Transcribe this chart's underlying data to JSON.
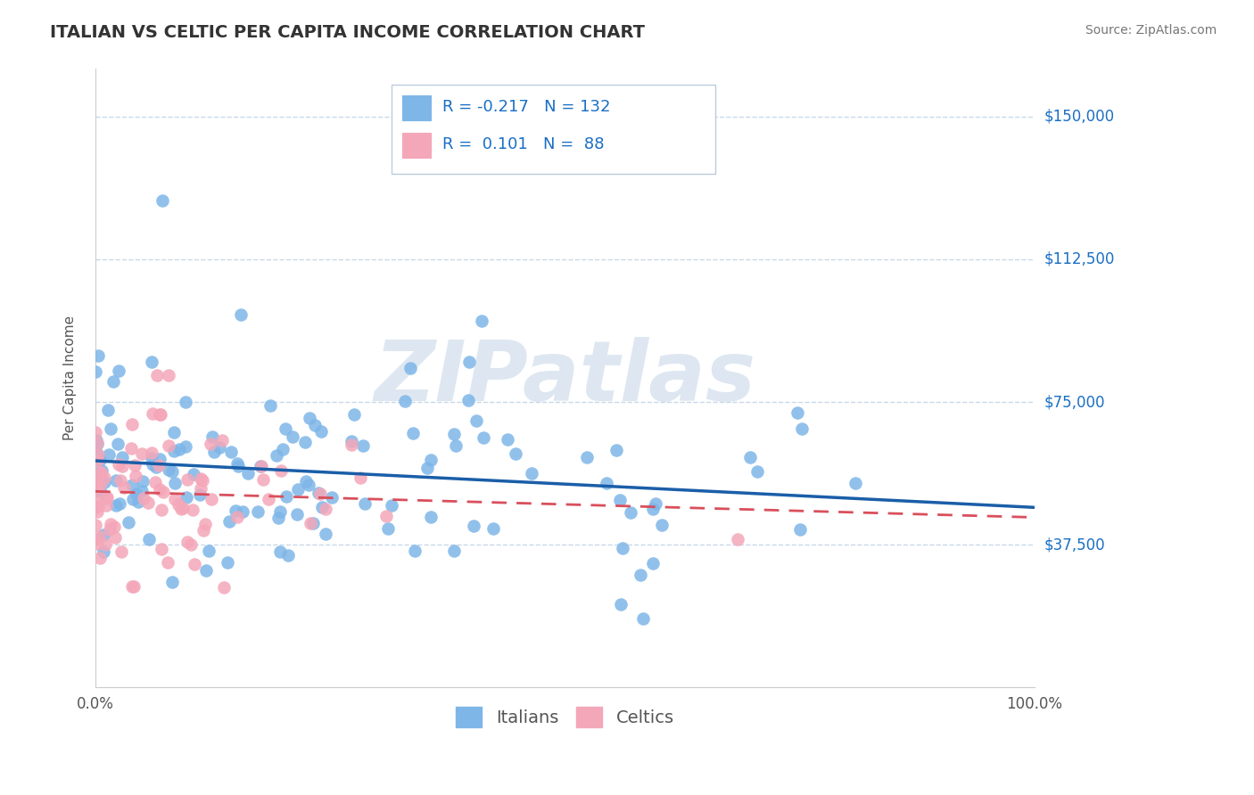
{
  "title": "ITALIAN VS CELTIC PER CAPITA INCOME CORRELATION CHART",
  "source": "Source: ZipAtlas.com",
  "ylabel": "Per Capita Income",
  "x_min": 0.0,
  "x_max": 1.0,
  "y_min": 0,
  "y_max": 162500,
  "yticks": [
    37500,
    75000,
    112500,
    150000
  ],
  "ytick_labels": [
    "$37,500",
    "$75,000",
    "$112,500",
    "$150,000"
  ],
  "xtick_labels": [
    "0.0%",
    "100.0%"
  ],
  "italian_color": "#7EB6E8",
  "celtic_color": "#F4A7B9",
  "italian_line_color": "#1A5EA8",
  "celtic_line_color": "#D94F5C",
  "grid_color": "#C8D8E8",
  "background_color": "#FFFFFF",
  "watermark": "ZIPatlas",
  "watermark_color": "#C8D8E8",
  "legend_italian_label": "Italians",
  "legend_celtic_label": "Celtics",
  "italian_R": -0.217,
  "italian_N": 132,
  "celtic_R": 0.101,
  "celtic_N": 88,
  "title_fontsize": 14,
  "axis_label_fontsize": 11,
  "tick_fontsize": 12,
  "legend_fontsize": 13,
  "source_fontsize": 10,
  "label_color": "#1A6FC4",
  "title_color": "#333333",
  "source_color": "#777777",
  "tick_color": "#555555"
}
